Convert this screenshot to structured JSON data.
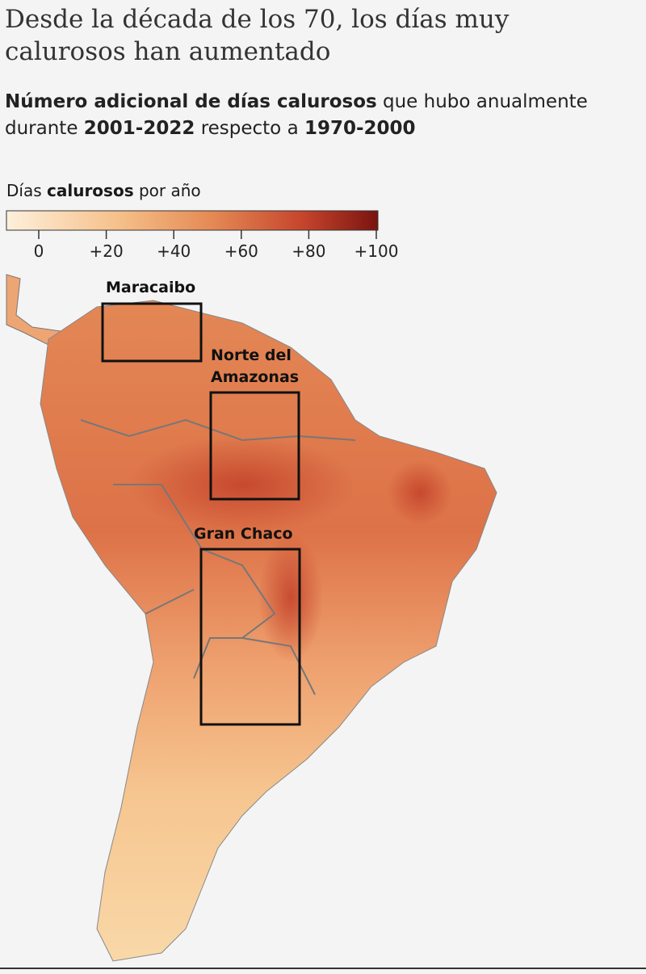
{
  "header": {
    "title": "Desde la década de los 70, los días muy calurosos han aumentado",
    "subtitle": [
      "Número adicional de días calurosos",
      "que hubo anualmente durante",
      "2001-2022",
      "respecto a",
      "1970-2000"
    ]
  },
  "legend": {
    "title": [
      "Días",
      "calurosos",
      "por año"
    ],
    "ticks": [
      0,
      {
        "value": 20,
        "label": "+20"
      },
      {
        "value": 40,
        "label": "+40"
      },
      {
        "value": 60,
        "label": "+60"
      },
      {
        "value": 80,
        "label": "+80"
      },
      {
        "value": 100,
        "label": "+100"
      }
    ]
  },
  "regions": [
    {
      "label": "Maracaibo"
    },
    {
      "label": "Norte del Amazonas"
    },
    {
      "label": "Gran Chaco"
    }
  ]
}
